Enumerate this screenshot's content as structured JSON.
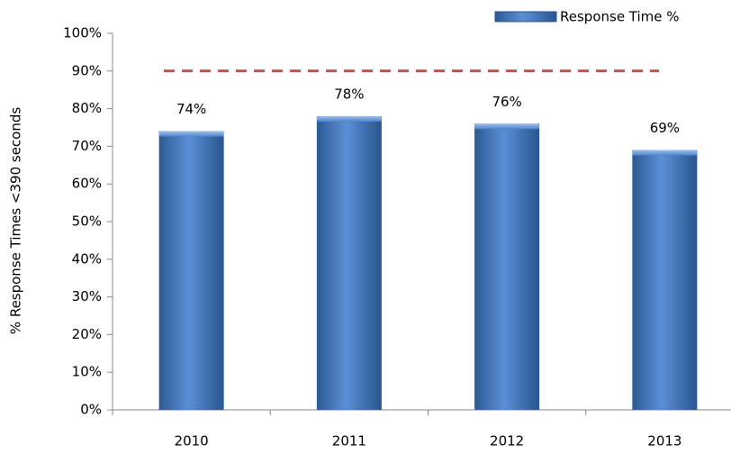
{
  "chart_data": {
    "type": "bar",
    "y_label": "% Response Times <390 seconds",
    "categories": [
      "2010",
      "2011",
      "2012",
      "2013"
    ],
    "series": [
      {
        "name": "Response Time %",
        "color": "#4a7ebb",
        "values": [
          74,
          78,
          76,
          69
        ],
        "value_labels": [
          "74%",
          "78%",
          "76%",
          "69%"
        ]
      }
    ],
    "reference_line": {
      "value": 90,
      "color": "#c0504d"
    },
    "ylim": [
      0,
      100
    ],
    "yticks": [
      {
        "value": 0,
        "label": "0%"
      },
      {
        "value": 10,
        "label": "10%"
      },
      {
        "value": 20,
        "label": "20%"
      },
      {
        "value": 30,
        "label": "30%"
      },
      {
        "value": 40,
        "label": "40%"
      },
      {
        "value": 50,
        "label": "50%"
      },
      {
        "value": 60,
        "label": "60%"
      },
      {
        "value": 70,
        "label": "70%"
      },
      {
        "value": 80,
        "label": "80%"
      },
      {
        "value": 90,
        "label": "90%"
      },
      {
        "value": 100,
        "label": "100%"
      }
    ],
    "legend": "top-right"
  }
}
